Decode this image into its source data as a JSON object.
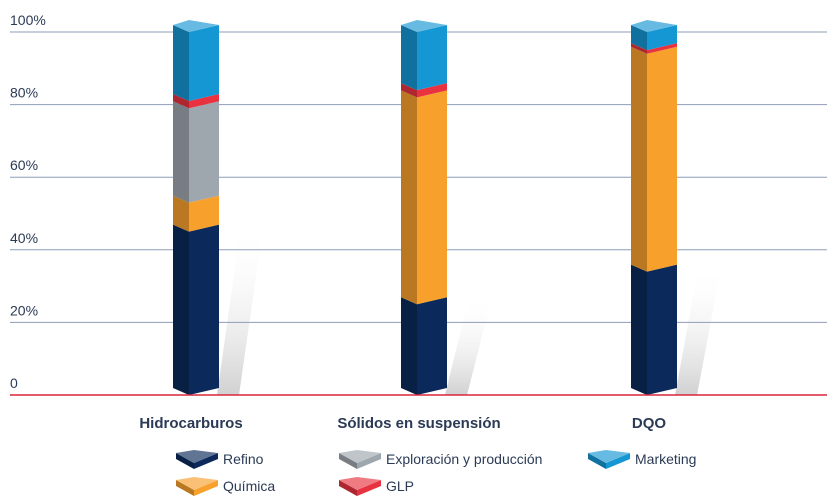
{
  "chart_data": {
    "type": "bar",
    "stacked": true,
    "percent": true,
    "categories": [
      "Hidrocarburos",
      "Sólidos en suspensión",
      "DQO"
    ],
    "series": [
      {
        "name": "Refino",
        "values": [
          45,
          25,
          34
        ],
        "color": "#0b2a5b"
      },
      {
        "name": "Química",
        "values": [
          8,
          57,
          60
        ],
        "color": "#f7a02c"
      },
      {
        "name": "Exploración y producción",
        "values": [
          26,
          0,
          0
        ],
        "color": "#9ea6ae"
      },
      {
        "name": "GLP",
        "values": [
          2,
          2,
          1
        ],
        "color": "#e8323f"
      },
      {
        "name": "Marketing",
        "values": [
          19,
          16,
          5
        ],
        "color": "#1597d4"
      }
    ],
    "yticks": [
      "0",
      "20%",
      "40%",
      "60%",
      "80%",
      "100%"
    ],
    "ylim": [
      0,
      100
    ],
    "grid": true,
    "legend_position": "bottom",
    "title": "",
    "xlabel": "",
    "ylabel": ""
  }
}
